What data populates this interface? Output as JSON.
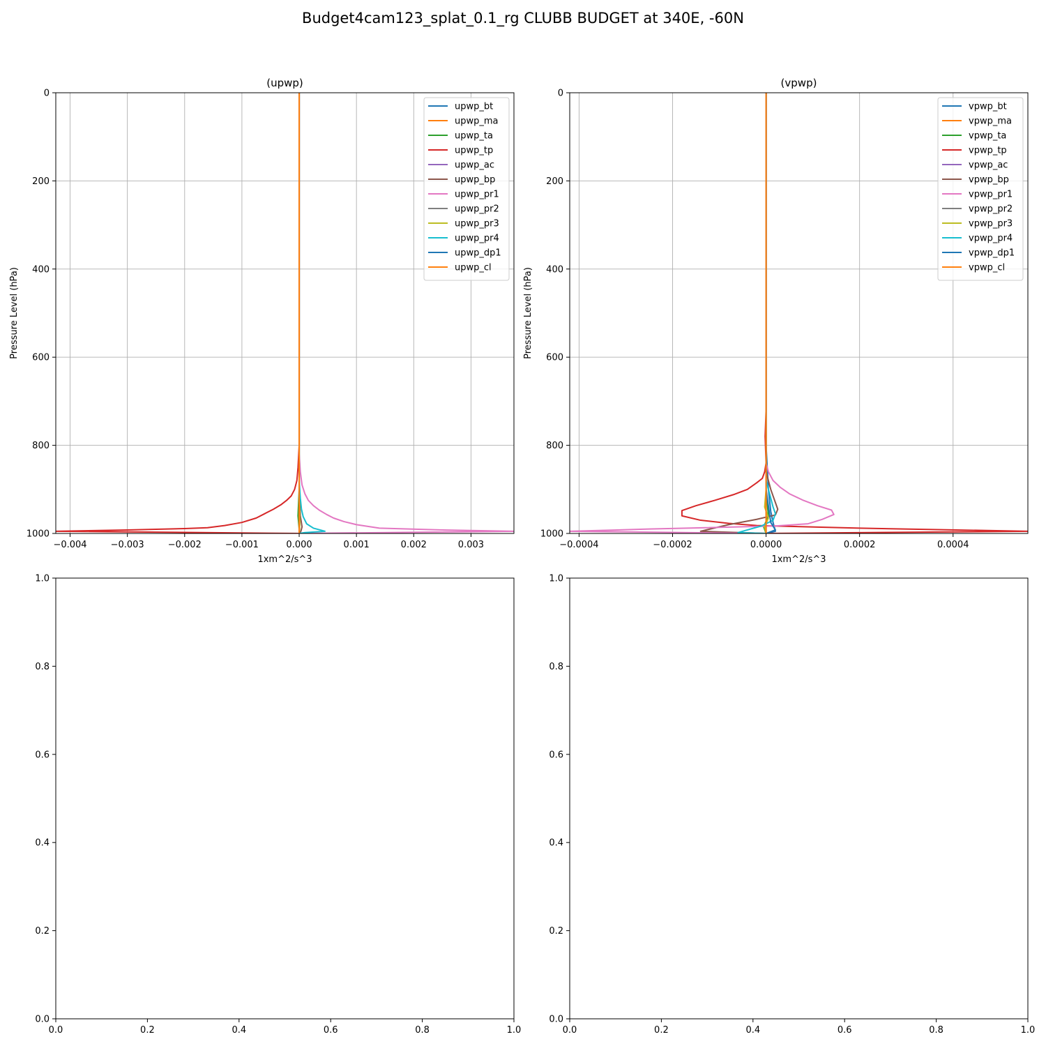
{
  "suptitle": "Budget4cam123_splat_0.1_rg CLUBB BUDGET at 340E, -60N",
  "colors": {
    "c0": "#1f77b4",
    "c1": "#ff7f0e",
    "c2": "#2ca02c",
    "c3": "#d62728",
    "c4": "#9467bd",
    "c5": "#8c564b",
    "c6": "#e377c2",
    "c7": "#7f7f7f",
    "c8": "#bcbd22",
    "c9": "#17becf",
    "grid": "#b0b0b0"
  },
  "chart_data": [
    {
      "type": "line",
      "title": "(upwp)",
      "xlabel": "1xm^2/s^3",
      "ylabel": "Pressure Level (hPa)",
      "xlim": [
        -0.00425,
        0.00375
      ],
      "ylim": [
        1000,
        0
      ],
      "y_inverted": true,
      "grid": true,
      "legend": "upper right",
      "xticks": [
        -0.004,
        -0.003,
        -0.002,
        -0.001,
        0.0,
        0.001,
        0.002,
        0.003
      ],
      "xtick_labels": [
        "−0.004",
        "−0.003",
        "−0.002",
        "−0.001",
        "0.000",
        "0.001",
        "0.002",
        "0.003"
      ],
      "yticks": [
        0,
        200,
        400,
        600,
        800,
        1000
      ],
      "ytick_labels": [
        "0",
        "200",
        "400",
        "600",
        "800",
        "1000"
      ],
      "series": [
        {
          "name": "upwp_bt",
          "color": "#1f77b4",
          "x": [
            0,
            0,
            0,
            0
          ],
          "y": [
            0,
            500,
            900,
            1000
          ]
        },
        {
          "name": "upwp_ma",
          "color": "#ff7f0e",
          "x": [
            0,
            0,
            0,
            0
          ],
          "y": [
            0,
            500,
            900,
            1000
          ]
        },
        {
          "name": "upwp_ta",
          "color": "#2ca02c",
          "x": [
            0,
            0,
            0,
            -2e-05,
            0,
            0
          ],
          "y": [
            0,
            500,
            900,
            960,
            990,
            1000
          ]
        },
        {
          "name": "upwp_tp",
          "color": "#d62728",
          "x": [
            0,
            0,
            -2e-05,
            -4e-05,
            -8e-05,
            -0.00014,
            -0.00022,
            -0.00032,
            -0.00045,
            -0.0006,
            -0.00075,
            -0.001,
            -0.0013,
            -0.0016,
            -0.002,
            -0.003,
            -0.00425,
            0
          ],
          "y": [
            0,
            800,
            850,
            880,
            900,
            915,
            925,
            935,
            945,
            955,
            965,
            975,
            982,
            987,
            989,
            992,
            995,
            1000
          ]
        },
        {
          "name": "upwp_ac",
          "color": "#9467bd",
          "x": [
            0,
            0,
            0
          ],
          "y": [
            0,
            900,
            1000
          ]
        },
        {
          "name": "upwp_bp",
          "color": "#8c564b",
          "x": [
            0,
            0,
            2e-05,
            5e-05,
            3e-05,
            0
          ],
          "y": [
            0,
            900,
            960,
            985,
            995,
            1000
          ]
        },
        {
          "name": "upwp_pr1",
          "color": "#e377c2",
          "x": [
            0,
            0,
            2e-05,
            5e-05,
            0.0001,
            0.00016,
            0.00025,
            0.00035,
            0.00048,
            0.0006,
            0.00078,
            0.001,
            0.0014,
            0.0025,
            0.00375,
            0
          ],
          "y": [
            0,
            820,
            860,
            890,
            910,
            925,
            937,
            947,
            957,
            965,
            973,
            980,
            988,
            992,
            995,
            1000
          ]
        },
        {
          "name": "upwp_pr2",
          "color": "#7f7f7f",
          "x": [
            0,
            0,
            0
          ],
          "y": [
            0,
            900,
            1000
          ]
        },
        {
          "name": "upwp_pr3",
          "color": "#bcbd22",
          "x": [
            0,
            0,
            1e-05,
            0
          ],
          "y": [
            0,
            900,
            980,
            1000
          ]
        },
        {
          "name": "upwp_pr4",
          "color": "#17becf",
          "x": [
            0,
            0,
            2e-05,
            4e-05,
            7e-05,
            0.00013,
            0.00025,
            0.00045,
            0.0001,
            0
          ],
          "y": [
            0,
            880,
            920,
            945,
            962,
            978,
            988,
            995,
            998,
            1000
          ]
        },
        {
          "name": "upwp_dp1",
          "color": "#1f77b4",
          "x": [
            0,
            0,
            0
          ],
          "y": [
            0,
            900,
            1000
          ]
        },
        {
          "name": "upwp_cl",
          "color": "#ff7f0e",
          "x": [
            0,
            0,
            0
          ],
          "y": [
            0,
            900,
            1000
          ]
        }
      ]
    },
    {
      "type": "line",
      "title": "(vpwp)",
      "xlabel": "1xm^2/s^3",
      "ylabel": "Pressure Level (hPa)",
      "xlim": [
        -0.00042,
        0.00056
      ],
      "ylim": [
        1000,
        0
      ],
      "y_inverted": true,
      "grid": true,
      "legend": "upper right",
      "xticks": [
        -0.0004,
        -0.0002,
        0.0,
        0.0002,
        0.0004
      ],
      "xtick_labels": [
        "−0.0004",
        "−0.0002",
        "0.0000",
        "0.0002",
        "0.0004"
      ],
      "yticks": [
        0,
        200,
        400,
        600,
        800,
        1000
      ],
      "ytick_labels": [
        "0",
        "200",
        "400",
        "600",
        "800",
        "1000"
      ],
      "series": [
        {
          "name": "vpwp_bt",
          "color": "#1f77b4",
          "x": [
            0,
            0,
            5e-06,
            1e-05,
            1.5e-05,
            2e-05,
            0
          ],
          "y": [
            0,
            800,
            900,
            950,
            975,
            995,
            1000
          ]
        },
        {
          "name": "vpwp_ma",
          "color": "#ff7f0e",
          "x": [
            0,
            0,
            0
          ],
          "y": [
            0,
            900,
            1000
          ]
        },
        {
          "name": "vpwp_ta",
          "color": "#2ca02c",
          "x": [
            0,
            0,
            5e-06,
            -5e-06,
            0
          ],
          "y": [
            0,
            900,
            960,
            985,
            1000
          ]
        },
        {
          "name": "vpwp_tp",
          "color": "#d62728",
          "x": [
            0,
            0,
            -2e-06,
            0,
            -3e-06,
            -8e-06,
            -2e-05,
            -4e-05,
            -7e-05,
            -0.00011,
            -0.00015,
            -0.00018,
            -0.00018,
            -0.00014,
            -8e-05,
            -2e-05,
            0.0002,
            0.00056,
            0
          ],
          "y": [
            0,
            720,
            780,
            840,
            860,
            875,
            885,
            900,
            912,
            925,
            937,
            948,
            960,
            970,
            977,
            982,
            988,
            995,
            1000
          ]
        },
        {
          "name": "vpwp_ac",
          "color": "#9467bd",
          "x": [
            0,
            0,
            0
          ],
          "y": [
            0,
            900,
            1000
          ]
        },
        {
          "name": "vpwp_bp",
          "color": "#8c564b",
          "x": [
            0,
            0,
            5e-06,
            1e-05,
            1.5e-05,
            2e-05,
            2.5e-05,
            2e-05,
            -2e-05,
            -8e-05,
            -0.00014,
            0
          ],
          "y": [
            0,
            860,
            880,
            900,
            915,
            930,
            945,
            958,
            968,
            980,
            995,
            1000
          ]
        },
        {
          "name": "vpwp_pr1",
          "color": "#e377c2",
          "x": [
            0,
            0,
            5e-06,
            1.5e-05,
            3e-05,
            5e-05,
            8e-05,
            0.00011,
            0.00014,
            0.000145,
            0.00012,
            9e-05,
            2e-05,
            -0.00025,
            -0.00042,
            0
          ],
          "y": [
            0,
            840,
            860,
            880,
            895,
            910,
            925,
            937,
            947,
            957,
            968,
            978,
            983,
            990,
            995,
            1000
          ]
        },
        {
          "name": "vpwp_pr2",
          "color": "#7f7f7f",
          "x": [
            0,
            0,
            0
          ],
          "y": [
            0,
            900,
            1000
          ]
        },
        {
          "name": "vpwp_pr3",
          "color": "#bcbd22",
          "x": [
            0,
            0,
            -3e-06,
            5e-06,
            -3e-06,
            0
          ],
          "y": [
            0,
            900,
            940,
            965,
            985,
            1000
          ]
        },
        {
          "name": "vpwp_pr4",
          "color": "#17becf",
          "x": [
            0,
            0,
            5e-06,
            1e-05,
            1.5e-05,
            2e-05,
            1.5e-05,
            -1e-05,
            -4e-05,
            -6e-05,
            0
          ],
          "y": [
            0,
            880,
            900,
            920,
            940,
            955,
            970,
            983,
            992,
            998,
            1000
          ]
        },
        {
          "name": "vpwp_dp1",
          "color": "#1f77b4",
          "x": [
            0,
            0,
            1e-05,
            2e-05,
            0
          ],
          "y": [
            0,
            900,
            975,
            992,
            1000
          ]
        },
        {
          "name": "vpwp_cl",
          "color": "#ff7f0e",
          "x": [
            0,
            0,
            0
          ],
          "y": [
            0,
            900,
            1000
          ]
        }
      ]
    },
    {
      "type": "line",
      "title": "",
      "xlabel": "",
      "ylabel": "",
      "xlim": [
        0,
        1
      ],
      "ylim": [
        0,
        1
      ],
      "y_inverted": false,
      "grid": false,
      "legend": "",
      "xticks": [
        0.0,
        0.2,
        0.4,
        0.6,
        0.8,
        1.0
      ],
      "xtick_labels": [
        "0.0",
        "0.2",
        "0.4",
        "0.6",
        "0.8",
        "1.0"
      ],
      "yticks": [
        0.0,
        0.2,
        0.4,
        0.6,
        0.8,
        1.0
      ],
      "ytick_labels": [
        "0.0",
        "0.2",
        "0.4",
        "0.6",
        "0.8",
        "1.0"
      ],
      "series": []
    },
    {
      "type": "line",
      "title": "",
      "xlabel": "",
      "ylabel": "",
      "xlim": [
        0,
        1
      ],
      "ylim": [
        0,
        1
      ],
      "y_inverted": false,
      "grid": false,
      "legend": "",
      "xticks": [
        0.0,
        0.2,
        0.4,
        0.6,
        0.8,
        1.0
      ],
      "xtick_labels": [
        "0.0",
        "0.2",
        "0.4",
        "0.6",
        "0.8",
        "1.0"
      ],
      "yticks": [
        0.0,
        0.2,
        0.4,
        0.6,
        0.8,
        1.0
      ],
      "ytick_labels": [
        "0.0",
        "0.2",
        "0.4",
        "0.6",
        "0.8",
        "1.0"
      ],
      "series": []
    }
  ]
}
